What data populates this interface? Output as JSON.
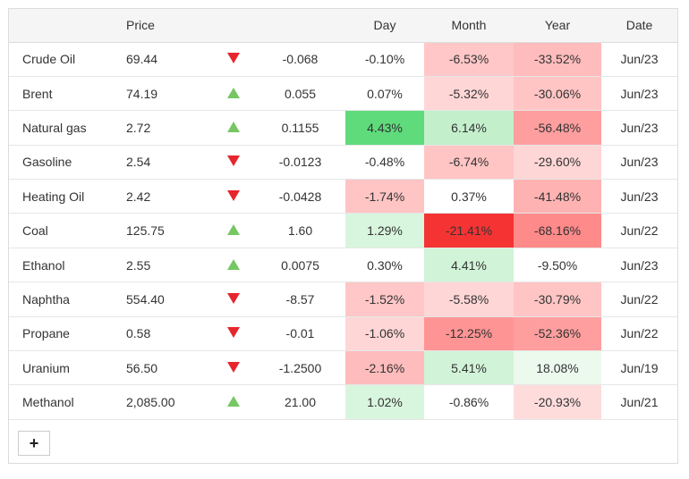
{
  "headers": {
    "name": "",
    "price": "Price",
    "arrow": "",
    "change": "",
    "day": "Day",
    "month": "Month",
    "year": "Year",
    "date": "Date"
  },
  "rows": [
    {
      "name": "Crude Oil",
      "price": "69.44",
      "dir": "down",
      "change": "-0.068",
      "day": "-0.10%",
      "month": "-6.53%",
      "year": "-33.52%",
      "date": "Jun/23",
      "day_bg": "#ffffff",
      "month_bg": "#ffc7c7",
      "year_bg": "#ffbcbc"
    },
    {
      "name": "Brent",
      "price": "74.19",
      "dir": "up",
      "change": "0.055",
      "day": "0.07%",
      "month": "-5.32%",
      "year": "-30.06%",
      "date": "Jun/23",
      "day_bg": "#ffffff",
      "month_bg": "#ffd6d6",
      "year_bg": "#ffc4c4"
    },
    {
      "name": "Natural gas",
      "price": "2.72",
      "dir": "up",
      "change": "0.1155",
      "day": "4.43%",
      "month": "6.14%",
      "year": "-56.48%",
      "date": "Jun/23",
      "day_bg": "#5fdb7c",
      "month_bg": "#c3f0cb",
      "year_bg": "#ff9e9e"
    },
    {
      "name": "Gasoline",
      "price": "2.54",
      "dir": "down",
      "change": "-0.0123",
      "day": "-0.48%",
      "month": "-6.74%",
      "year": "-29.60%",
      "date": "Jun/23",
      "day_bg": "#ffffff",
      "month_bg": "#ffc4c4",
      "year_bg": "#ffd6d6"
    },
    {
      "name": "Heating Oil",
      "price": "2.42",
      "dir": "down",
      "change": "-0.0428",
      "day": "-1.74%",
      "month": "0.37%",
      "year": "-41.48%",
      "date": "Jun/23",
      "day_bg": "#ffc4c4",
      "month_bg": "#ffffff",
      "year_bg": "#ffb2b2"
    },
    {
      "name": "Coal",
      "price": "125.75",
      "dir": "up",
      "change": "1.60",
      "day": "1.29%",
      "month": "-21.41%",
      "year": "-68.16%",
      "date": "Jun/22",
      "day_bg": "#d8f5dd",
      "month_bg": "#f53333",
      "year_bg": "#ff8a8a"
    },
    {
      "name": "Ethanol",
      "price": "2.55",
      "dir": "up",
      "change": "0.0075",
      "day": "0.30%",
      "month": "4.41%",
      "year": "-9.50%",
      "date": "Jun/23",
      "day_bg": "#ffffff",
      "month_bg": "#d1f3d7",
      "year_bg": "#ffffff"
    },
    {
      "name": "Naphtha",
      "price": "554.40",
      "dir": "down",
      "change": "-8.57",
      "day": "-1.52%",
      "month": "-5.58%",
      "year": "-30.79%",
      "date": "Jun/22",
      "day_bg": "#ffc7c7",
      "month_bg": "#ffd6d6",
      "year_bg": "#ffc4c4"
    },
    {
      "name": "Propane",
      "price": "0.58",
      "dir": "down",
      "change": "-0.01",
      "day": "-1.06%",
      "month": "-12.25%",
      "year": "-52.36%",
      "date": "Jun/22",
      "day_bg": "#ffd6d6",
      "month_bg": "#ff9494",
      "year_bg": "#ff9e9e"
    },
    {
      "name": "Uranium",
      "price": "56.50",
      "dir": "down",
      "change": "-1.2500",
      "day": "-2.16%",
      "month": "5.41%",
      "year": "18.08%",
      "date": "Jun/19",
      "day_bg": "#ffbcbc",
      "month_bg": "#d1f3d7",
      "year_bg": "#ecfaee"
    },
    {
      "name": "Methanol",
      "price": "2,085.00",
      "dir": "up",
      "change": "21.00",
      "day": "1.02%",
      "month": "-0.86%",
      "year": "-20.93%",
      "date": "Jun/21",
      "day_bg": "#d8f5dd",
      "month_bg": "#ffffff",
      "year_bg": "#ffdcdc"
    }
  ],
  "add_button": {
    "label": "+",
    "icon": "plus-icon"
  },
  "colors": {
    "up": "#76c763",
    "down": "#e6262c",
    "header_bg": "#f5f5f5",
    "border": "#dcdcdc"
  }
}
